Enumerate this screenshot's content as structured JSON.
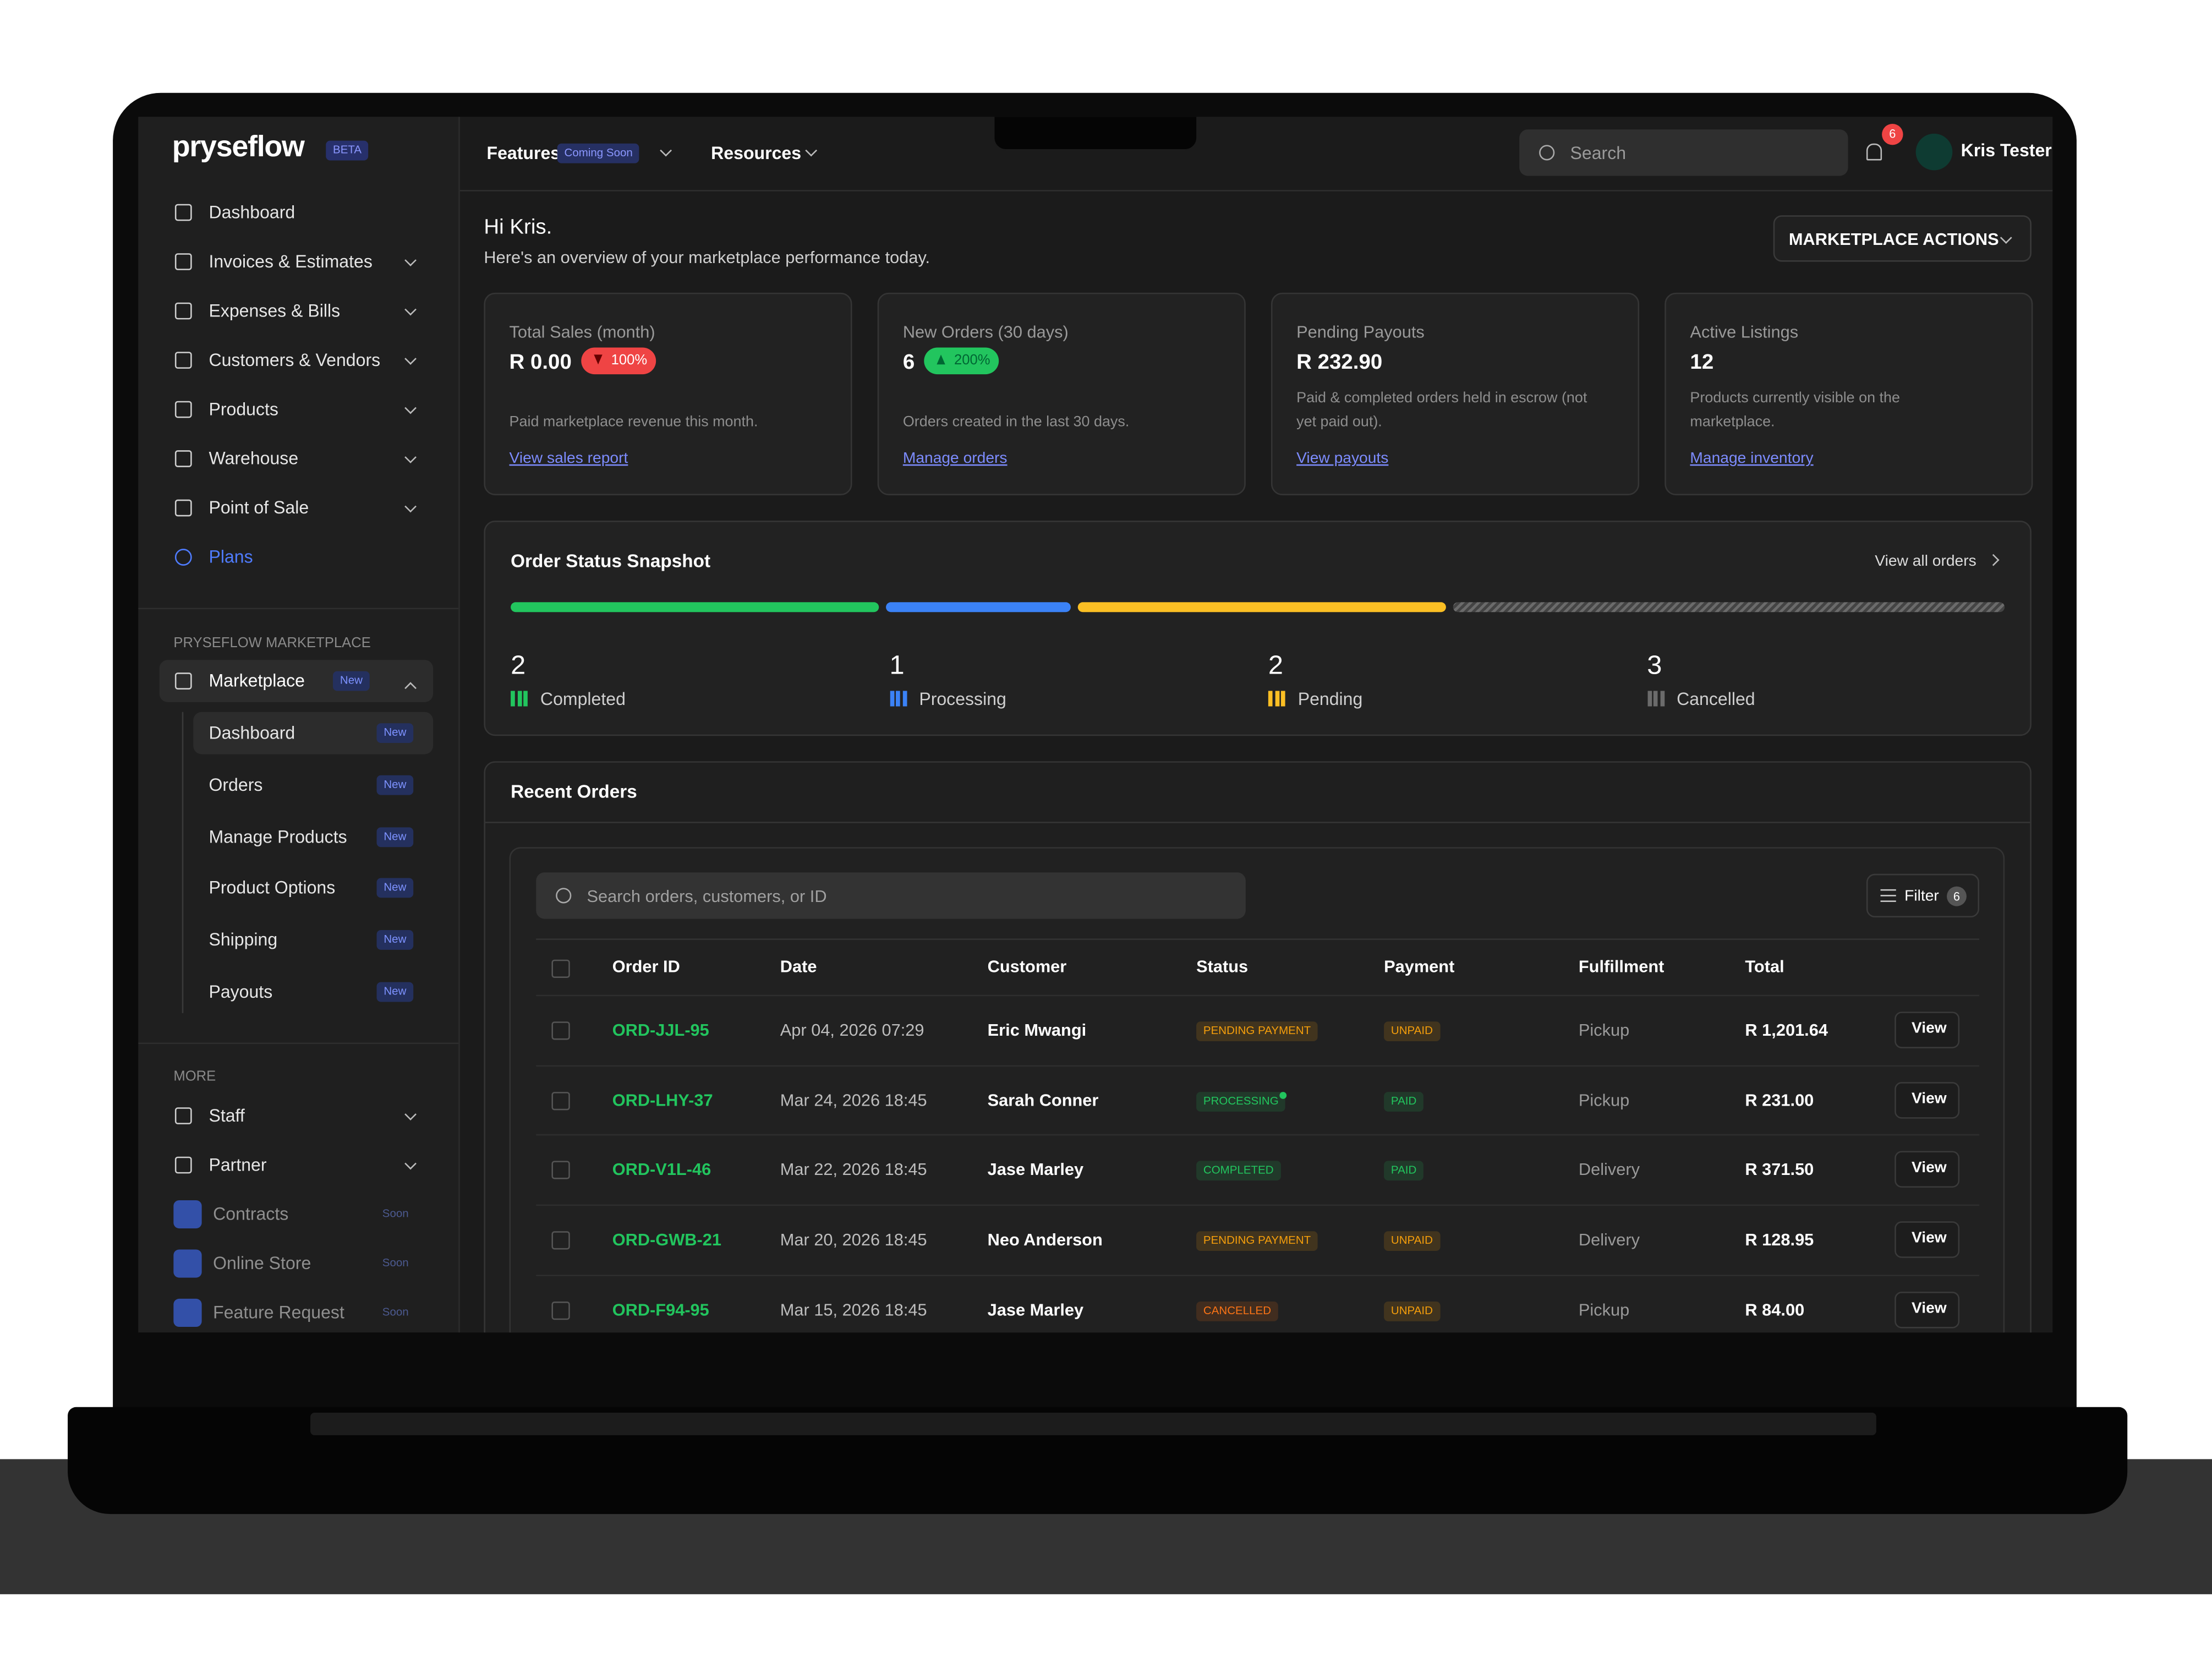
{
  "sidebar": {
    "logo": "pryseflow",
    "logo_badge": "BETA",
    "nav": [
      {
        "label": "Dashboard",
        "expandable": false
      },
      {
        "label": "Invoices & Estimates",
        "expandable": true
      },
      {
        "label": "Expenses & Bills",
        "expandable": true
      },
      {
        "label": "Customers & Vendors",
        "expandable": true
      },
      {
        "label": "Products",
        "expandable": true
      },
      {
        "label": "Warehouse",
        "expandable": true
      },
      {
        "label": "Point of Sale",
        "expandable": true
      }
    ],
    "plans": "Plans",
    "marketplace_section": "PRYSEFLOW MARKETPLACE",
    "marketplace": {
      "label": "Marketplace",
      "badge": "New"
    },
    "sub": [
      {
        "label": "Dashboard",
        "badge": "New"
      },
      {
        "label": "Orders",
        "badge": "New"
      },
      {
        "label": "Manage Products",
        "badge": "New"
      },
      {
        "label": "Product Options",
        "badge": "New"
      },
      {
        "label": "Shipping",
        "badge": "New"
      },
      {
        "label": "Payouts",
        "badge": "New"
      }
    ],
    "more_section": "MORE",
    "more": [
      {
        "label": "Staff"
      },
      {
        "label": "Partner"
      }
    ],
    "soon": [
      {
        "label": "Contracts",
        "badge": "Soon"
      },
      {
        "label": "Online Store",
        "badge": "Soon"
      },
      {
        "label": "Feature Request",
        "badge": "Soon"
      }
    ]
  },
  "topbar": {
    "features": "Features",
    "coming_soon": "Coming Soon",
    "resources": "Resources",
    "search": "Search",
    "notifications": 6,
    "user": "Kris Tester"
  },
  "header": {
    "greeting": "Hi Kris.",
    "subtitle": "Here's an overview of your marketplace performance today.",
    "actions": "MARKETPLACE ACTIONS"
  },
  "cards": [
    {
      "label": "Total Sales (month)",
      "value": "R 0.00",
      "change": "100%",
      "direction": "down",
      "change_color": "#ef4444",
      "description": "Paid marketplace revenue this month.",
      "link": "View sales report"
    },
    {
      "label": "New Orders (30 days)",
      "value": "6",
      "change": "200%",
      "direction": "up",
      "change_color": "#22c55e",
      "description": "Orders created in the last 30 days.",
      "link": "Manage orders"
    },
    {
      "label": "Pending Payouts",
      "value": "R 232.90",
      "description": "Paid & completed orders held in escrow (not yet paid out).",
      "link": "View payouts"
    },
    {
      "label": "Active Listings",
      "value": "12",
      "description": "Products currently visible on the marketplace.",
      "link": "Manage inventory"
    }
  ],
  "snapshot": {
    "title": "Order Status Snapshot",
    "link": "View all orders",
    "statuses": [
      {
        "name": "Completed",
        "count": 2,
        "color": "#22c55e"
      },
      {
        "name": "Processing",
        "count": 1,
        "color": "#3b82f6"
      },
      {
        "name": "Pending",
        "count": 2,
        "color": "#fbbf24"
      },
      {
        "name": "Cancelled",
        "count": 3,
        "color": "#6b6b6b"
      }
    ]
  },
  "recent": {
    "title": "Recent Orders",
    "search": "Search orders, customers, or ID",
    "filter": "Filter",
    "filter_count": 6,
    "columns": [
      "Order ID",
      "Date",
      "Customer",
      "Status",
      "Payment",
      "Fulfillment",
      "Total"
    ],
    "rows": [
      {
        "id": "ORD-JJL-95",
        "date": "Apr 04, 2026 07:29",
        "customer": "Eric Mwangi",
        "status": {
          "label": "PENDING PAYMENT",
          "color": "#f59e0b",
          "dot": false
        },
        "payment": {
          "label": "UNPAID",
          "color": "#f59e0b"
        },
        "fulfillment": "Pickup",
        "total": "R 1,201.64",
        "action": "View"
      },
      {
        "id": "ORD-LHY-37",
        "date": "Mar 24, 2026 18:45",
        "customer": "Sarah Conner",
        "status": {
          "label": "PROCESSING",
          "color": "#22c55e",
          "dot": true
        },
        "payment": {
          "label": "PAID",
          "color": "#22c55e"
        },
        "fulfillment": "Pickup",
        "total": "R 231.00",
        "action": "View"
      },
      {
        "id": "ORD-V1L-46",
        "date": "Mar 22, 2026 18:45",
        "customer": "Jase Marley",
        "status": {
          "label": "COMPLETED",
          "color": "#22c55e",
          "dot": false
        },
        "payment": {
          "label": "PAID",
          "color": "#22c55e"
        },
        "fulfillment": "Delivery",
        "total": "R 371.50",
        "action": "View"
      },
      {
        "id": "ORD-GWB-21",
        "date": "Mar 20, 2026 18:45",
        "customer": "Neo Anderson",
        "status": {
          "label": "PENDING PAYMENT",
          "color": "#f59e0b",
          "dot": false
        },
        "payment": {
          "label": "UNPAID",
          "color": "#f59e0b"
        },
        "fulfillment": "Delivery",
        "total": "R 128.95",
        "action": "View"
      },
      {
        "id": "ORD-F94-95",
        "date": "Mar 15, 2026 18:45",
        "customer": "Jase Marley",
        "status": {
          "label": "CANCELLED",
          "color": "#f97316",
          "dot": false
        },
        "payment": {
          "label": "UNPAID",
          "color": "#f59e0b"
        },
        "fulfillment": "Pickup",
        "total": "R 84.00",
        "action": "View"
      }
    ]
  }
}
